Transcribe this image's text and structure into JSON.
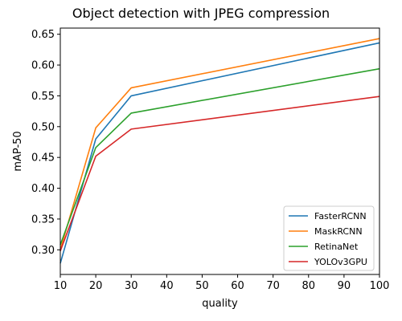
{
  "chart_data": {
    "type": "line",
    "title": "Object detection with JPEG compression",
    "xlabel": "quality",
    "ylabel": "mAP-50",
    "x": [
      10,
      20,
      30,
      100
    ],
    "xlim": [
      10,
      100
    ],
    "ylim": [
      0.26,
      0.66
    ],
    "xticks": [
      "10",
      "20",
      "30",
      "40",
      "50",
      "60",
      "70",
      "80",
      "90",
      "100"
    ],
    "yticks": [
      "0.30",
      "0.35",
      "0.40",
      "0.45",
      "0.50",
      "0.55",
      "0.60",
      "0.65"
    ],
    "grid": false,
    "legend_position": "bottom-right",
    "series": [
      {
        "name": "FasterRCNN",
        "color": "#1f77b4",
        "values": [
          0.278,
          0.48,
          0.55,
          0.636
        ]
      },
      {
        "name": "MaskRCNN",
        "color": "#ff7f0e",
        "values": [
          0.3,
          0.498,
          0.563,
          0.643
        ]
      },
      {
        "name": "RetinaNet",
        "color": "#2ca02c",
        "values": [
          0.308,
          0.466,
          0.522,
          0.594
        ]
      },
      {
        "name": "YOLOv3GPU",
        "color": "#d62728",
        "values": [
          0.298,
          0.452,
          0.496,
          0.549
        ]
      }
    ]
  }
}
